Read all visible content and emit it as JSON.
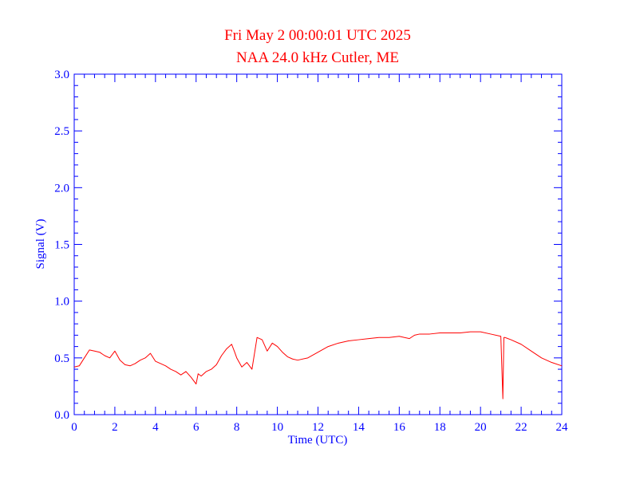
{
  "chart_data": {
    "type": "line",
    "title": "Fri May 2 00:00:01 UTC 2025",
    "subtitle": "NAA 24.0 kHz Cutler, ME",
    "xlabel": "Time (UTC)",
    "ylabel": "Signal (V)",
    "xlim": [
      0,
      24
    ],
    "ylim": [
      0,
      3.0
    ],
    "x_ticks": [
      0,
      2,
      4,
      6,
      8,
      10,
      12,
      14,
      16,
      18,
      20,
      22,
      24
    ],
    "x_tick_labels": [
      "0",
      "2",
      "4",
      "6",
      "8",
      "10",
      "12",
      "14",
      "16",
      "18",
      "20",
      "22",
      "24"
    ],
    "y_ticks": [
      0,
      0.5,
      1.0,
      1.5,
      2.0,
      2.5,
      3.0
    ],
    "y_tick_labels": [
      "0.0",
      "0.5",
      "1.0",
      "1.5",
      "2.0",
      "2.5",
      "3.0"
    ],
    "grid": false,
    "series": [
      {
        "color": "#ff0000",
        "x": [
          0.0,
          0.25,
          0.5,
          0.75,
          1.0,
          1.25,
          1.5,
          1.75,
          2.0,
          2.25,
          2.5,
          2.75,
          3.0,
          3.25,
          3.5,
          3.75,
          4.0,
          4.25,
          4.5,
          4.75,
          5.0,
          5.25,
          5.5,
          5.75,
          6.0,
          6.1,
          6.25,
          6.5,
          6.75,
          7.0,
          7.25,
          7.5,
          7.75,
          7.9,
          8.0,
          8.25,
          8.5,
          8.75,
          9.0,
          9.25,
          9.5,
          9.75,
          10.0,
          10.25,
          10.5,
          10.75,
          11.0,
          11.5,
          12.0,
          12.5,
          13.0,
          13.5,
          14.0,
          14.5,
          15.0,
          15.5,
          16.0,
          16.5,
          16.75,
          17.0,
          17.5,
          18.0,
          18.5,
          19.0,
          19.5,
          20.0,
          20.5,
          21.0,
          21.1,
          21.15,
          21.2,
          21.5,
          22.0,
          22.5,
          23.0,
          23.5,
          24.0
        ],
        "values": [
          0.42,
          0.43,
          0.5,
          0.57,
          0.56,
          0.55,
          0.52,
          0.5,
          0.56,
          0.48,
          0.44,
          0.43,
          0.45,
          0.48,
          0.5,
          0.54,
          0.47,
          0.45,
          0.43,
          0.4,
          0.38,
          0.35,
          0.38,
          0.33,
          0.27,
          0.36,
          0.34,
          0.38,
          0.4,
          0.44,
          0.52,
          0.58,
          0.62,
          0.55,
          0.5,
          0.42,
          0.46,
          0.4,
          0.68,
          0.66,
          0.56,
          0.63,
          0.6,
          0.55,
          0.51,
          0.49,
          0.48,
          0.5,
          0.55,
          0.6,
          0.63,
          0.65,
          0.66,
          0.67,
          0.68,
          0.68,
          0.69,
          0.67,
          0.7,
          0.71,
          0.71,
          0.72,
          0.72,
          0.72,
          0.73,
          0.73,
          0.71,
          0.69,
          0.14,
          0.68,
          0.68,
          0.66,
          0.62,
          0.56,
          0.5,
          0.46,
          0.43
        ]
      }
    ],
    "colors": {
      "axis": "#0000ff",
      "title": "#ff0000",
      "line": "#ff0000"
    }
  }
}
